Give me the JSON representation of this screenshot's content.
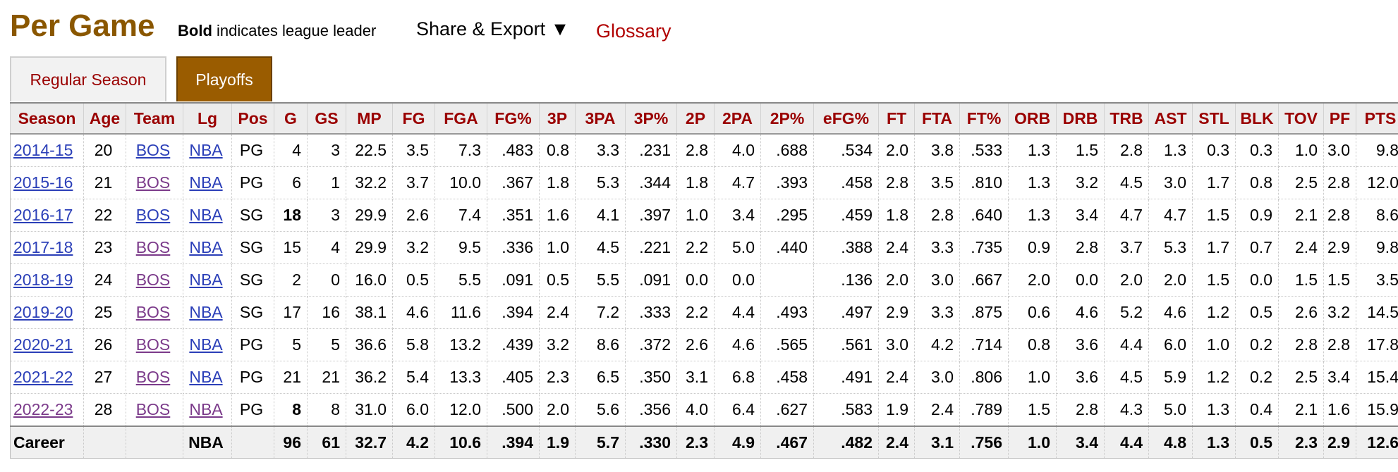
{
  "header": {
    "title": "Per Game",
    "bold_word": "Bold",
    "bold_rest": " indicates league leader",
    "share": "Share & Export ▼",
    "glossary": "Glossary"
  },
  "tabs": [
    {
      "label": "Regular Season",
      "active": false
    },
    {
      "label": "Playoffs",
      "active": true
    }
  ],
  "columns": [
    "Season",
    "Age",
    "Team",
    "Lg",
    "Pos",
    "G",
    "GS",
    "MP",
    "FG",
    "FGA",
    "FG%",
    "3P",
    "3PA",
    "3P%",
    "2P",
    "2PA",
    "2P%",
    "eFG%",
    "FT",
    "FTA",
    "FT%",
    "ORB",
    "DRB",
    "TRB",
    "AST",
    "STL",
    "BLK",
    "TOV",
    "PF",
    "PTS"
  ],
  "rows": [
    [
      "2014-15",
      "20",
      "BOS",
      "NBA",
      "PG",
      "4",
      "3",
      "22.5",
      "3.5",
      "7.3",
      ".483",
      "0.8",
      "3.3",
      ".231",
      "2.8",
      "4.0",
      ".688",
      ".534",
      "2.0",
      "3.8",
      ".533",
      "1.3",
      "1.5",
      "2.8",
      "1.3",
      "0.3",
      "0.3",
      "1.0",
      "3.0",
      "9.8"
    ],
    [
      "2015-16",
      "21",
      "BOS",
      "NBA",
      "PG",
      "6",
      "1",
      "32.2",
      "3.7",
      "10.0",
      ".367",
      "1.8",
      "5.3",
      ".344",
      "1.8",
      "4.7",
      ".393",
      ".458",
      "2.8",
      "3.5",
      ".810",
      "1.3",
      "3.2",
      "4.5",
      "3.0",
      "1.7",
      "0.8",
      "2.5",
      "2.8",
      "12.0"
    ],
    [
      "2016-17",
      "22",
      "BOS",
      "NBA",
      "SG",
      "18",
      "3",
      "29.9",
      "2.6",
      "7.4",
      ".351",
      "1.6",
      "4.1",
      ".397",
      "1.0",
      "3.4",
      ".295",
      ".459",
      "1.8",
      "2.8",
      ".640",
      "1.3",
      "3.4",
      "4.7",
      "4.7",
      "1.5",
      "0.9",
      "2.1",
      "2.8",
      "8.6"
    ],
    [
      "2017-18",
      "23",
      "BOS",
      "NBA",
      "SG",
      "15",
      "4",
      "29.9",
      "3.2",
      "9.5",
      ".336",
      "1.0",
      "4.5",
      ".221",
      "2.2",
      "5.0",
      ".440",
      ".388",
      "2.4",
      "3.3",
      ".735",
      "0.9",
      "2.8",
      "3.7",
      "5.3",
      "1.7",
      "0.7",
      "2.4",
      "2.9",
      "9.8"
    ],
    [
      "2018-19",
      "24",
      "BOS",
      "NBA",
      "SG",
      "2",
      "0",
      "16.0",
      "0.5",
      "5.5",
      ".091",
      "0.5",
      "5.5",
      ".091",
      "0.0",
      "0.0",
      "",
      ".136",
      "2.0",
      "3.0",
      ".667",
      "2.0",
      "0.0",
      "2.0",
      "2.0",
      "1.5",
      "0.0",
      "1.5",
      "1.5",
      "3.5"
    ],
    [
      "2019-20",
      "25",
      "BOS",
      "NBA",
      "SG",
      "17",
      "16",
      "38.1",
      "4.6",
      "11.6",
      ".394",
      "2.4",
      "7.2",
      ".333",
      "2.2",
      "4.4",
      ".493",
      ".497",
      "2.9",
      "3.3",
      ".875",
      "0.6",
      "4.6",
      "5.2",
      "4.6",
      "1.2",
      "0.5",
      "2.6",
      "3.2",
      "14.5"
    ],
    [
      "2020-21",
      "26",
      "BOS",
      "NBA",
      "PG",
      "5",
      "5",
      "36.6",
      "5.8",
      "13.2",
      ".439",
      "3.2",
      "8.6",
      ".372",
      "2.6",
      "4.6",
      ".565",
      ".561",
      "3.0",
      "4.2",
      ".714",
      "0.8",
      "3.6",
      "4.4",
      "6.0",
      "1.0",
      "0.2",
      "2.8",
      "2.8",
      "17.8"
    ],
    [
      "2021-22",
      "27",
      "BOS",
      "NBA",
      "PG",
      "21",
      "21",
      "36.2",
      "5.4",
      "13.3",
      ".405",
      "2.3",
      "6.5",
      ".350",
      "3.1",
      "6.8",
      ".458",
      ".491",
      "2.4",
      "3.0",
      ".806",
      "1.0",
      "3.6",
      "4.5",
      "5.9",
      "1.2",
      "0.2",
      "2.5",
      "3.4",
      "15.4"
    ],
    [
      "2022-23",
      "28",
      "BOS",
      "NBA",
      "PG",
      "8",
      "8",
      "31.0",
      "6.0",
      "12.0",
      ".500",
      "2.0",
      "5.6",
      ".356",
      "4.0",
      "6.4",
      ".627",
      ".583",
      "1.9",
      "2.4",
      ".789",
      "1.5",
      "2.8",
      "4.3",
      "5.0",
      "1.3",
      "0.4",
      "2.1",
      "1.6",
      "15.9"
    ]
  ],
  "career": [
    "Career",
    "",
    "",
    "NBA",
    "",
    "96",
    "61",
    "32.7",
    "4.2",
    "10.6",
    ".394",
    "1.9",
    "5.7",
    ".330",
    "2.3",
    "4.9",
    ".467",
    ".482",
    "2.4",
    "3.1",
    ".756",
    "1.0",
    "3.4",
    "4.4",
    "4.8",
    "1.3",
    "0.5",
    "2.3",
    "2.9",
    "12.6"
  ],
  "season_link_styles": [
    "link",
    "link",
    "link",
    "link",
    "link",
    "link",
    "link",
    "link",
    "visited"
  ],
  "team_link_styles": [
    "link",
    "visited",
    "link",
    "visited",
    "visited",
    "visited",
    "visited",
    "visited",
    "visited"
  ],
  "lg_link_styles": [
    "link",
    "link",
    "link",
    "link",
    "link",
    "link",
    "link",
    "link",
    "visited"
  ],
  "league_leader_cells": [
    [
      2,
      5
    ],
    [
      8,
      5
    ]
  ],
  "colors": {
    "title": "#8a5700",
    "header_text": "#9a0000",
    "tab_active": "#9a5c00",
    "link": "#2b3fb8",
    "visited": "#7b3a8a"
  }
}
